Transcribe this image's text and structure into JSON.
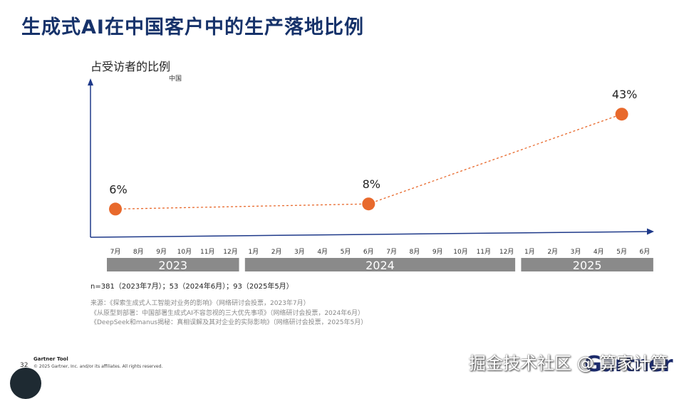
{
  "page": {
    "title": "生成式AI在中国客户中的生产落地比例",
    "sample_note": "n=381（2023年7月）；53（2024年6月）；93（2025年5月）",
    "sources": [
      "来源：《探索生成式人工智能对业务的影响》（网络研讨会投票，2023年7月）",
      "《从原型到部署：中国部署生成式AI不容忽视的三大优先事项》（网络研讨会投票，2024年6月）",
      "《DeepSeek和manus揭秘：真相误解及其对企业的实际影响》（网络研讨会投票，2025年5月）"
    ],
    "footer": {
      "brand": "Gartner Tool",
      "page_number": "32",
      "copyright": "© 2025 Gartner, Inc. and/or its affiliates. All rights reserved.",
      "logo": "Gartner",
      "watermark": "掘金技术社区 @ 算家计算"
    }
  },
  "chart_data": {
    "type": "line",
    "ylabel": "占受访者的比例",
    "region_label": "中国",
    "x": [
      "7月",
      "8月",
      "9月",
      "10月",
      "11月",
      "12月",
      "1月",
      "2月",
      "3月",
      "4月",
      "5月",
      "6月",
      "7月",
      "8月",
      "9月",
      "10月",
      "11月",
      "12月",
      "1月",
      "2月",
      "3月",
      "4月",
      "5月",
      "6月"
    ],
    "years": [
      {
        "label": "2023",
        "start": 0,
        "end": 5
      },
      {
        "label": "2024",
        "start": 6,
        "end": 17
      },
      {
        "label": "2025",
        "start": 18,
        "end": 23
      }
    ],
    "series": [
      {
        "points": [
          {
            "x_index": 0,
            "y": 6,
            "label": "6%"
          },
          {
            "x_index": 11,
            "y": 8,
            "label": "8%"
          },
          {
            "x_index": 22,
            "y": 43,
            "label": "43%"
          }
        ]
      }
    ],
    "ylim": [
      0,
      50
    ],
    "grid": false,
    "colors": {
      "marker": "#e8692c",
      "line": "#e8692c",
      "axis": "#1f3a8a",
      "year_band": "#8a8a8a"
    }
  }
}
